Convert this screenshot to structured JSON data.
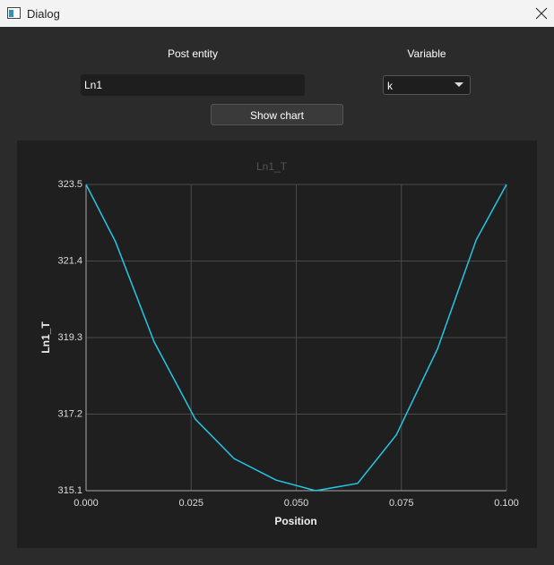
{
  "window": {
    "title": "Dialog"
  },
  "form": {
    "post_entity_label": "Post entity",
    "post_entity_value": "Ln1",
    "variable_label": "Variable",
    "variable_value": "k",
    "button": "Show chart"
  },
  "chart_data": {
    "type": "line",
    "title": "Ln1_T",
    "x_label": "Position",
    "y_label": "Ln1_T",
    "x": [
      0,
      0.007,
      0.0162,
      0.026,
      0.0352,
      0.0452,
      0.0546,
      0.0646,
      0.0738,
      0.0836,
      0.0928,
      0.1
    ],
    "values": [
      323.5,
      321.93,
      319.18,
      317.06,
      315.98,
      315.39,
      315.1,
      315.3,
      316.63,
      318.99,
      321.98,
      323.5
    ],
    "color": "#22c7e6",
    "xlim": [
      0,
      0.1
    ],
    "xticks": [
      {
        "value": 0,
        "label": "0.000"
      },
      {
        "value": 0.025,
        "label": "0.025"
      },
      {
        "value": 0.05,
        "label": "0.050"
      },
      {
        "value": 0.075,
        "label": "0.075"
      },
      {
        "value": 0.1,
        "label": "0.100"
      }
    ],
    "ylim": [
      315.1,
      323.5
    ],
    "yticks": [
      315.1,
      317.2,
      319.3,
      321.4,
      323.5
    ],
    "grid": true
  }
}
